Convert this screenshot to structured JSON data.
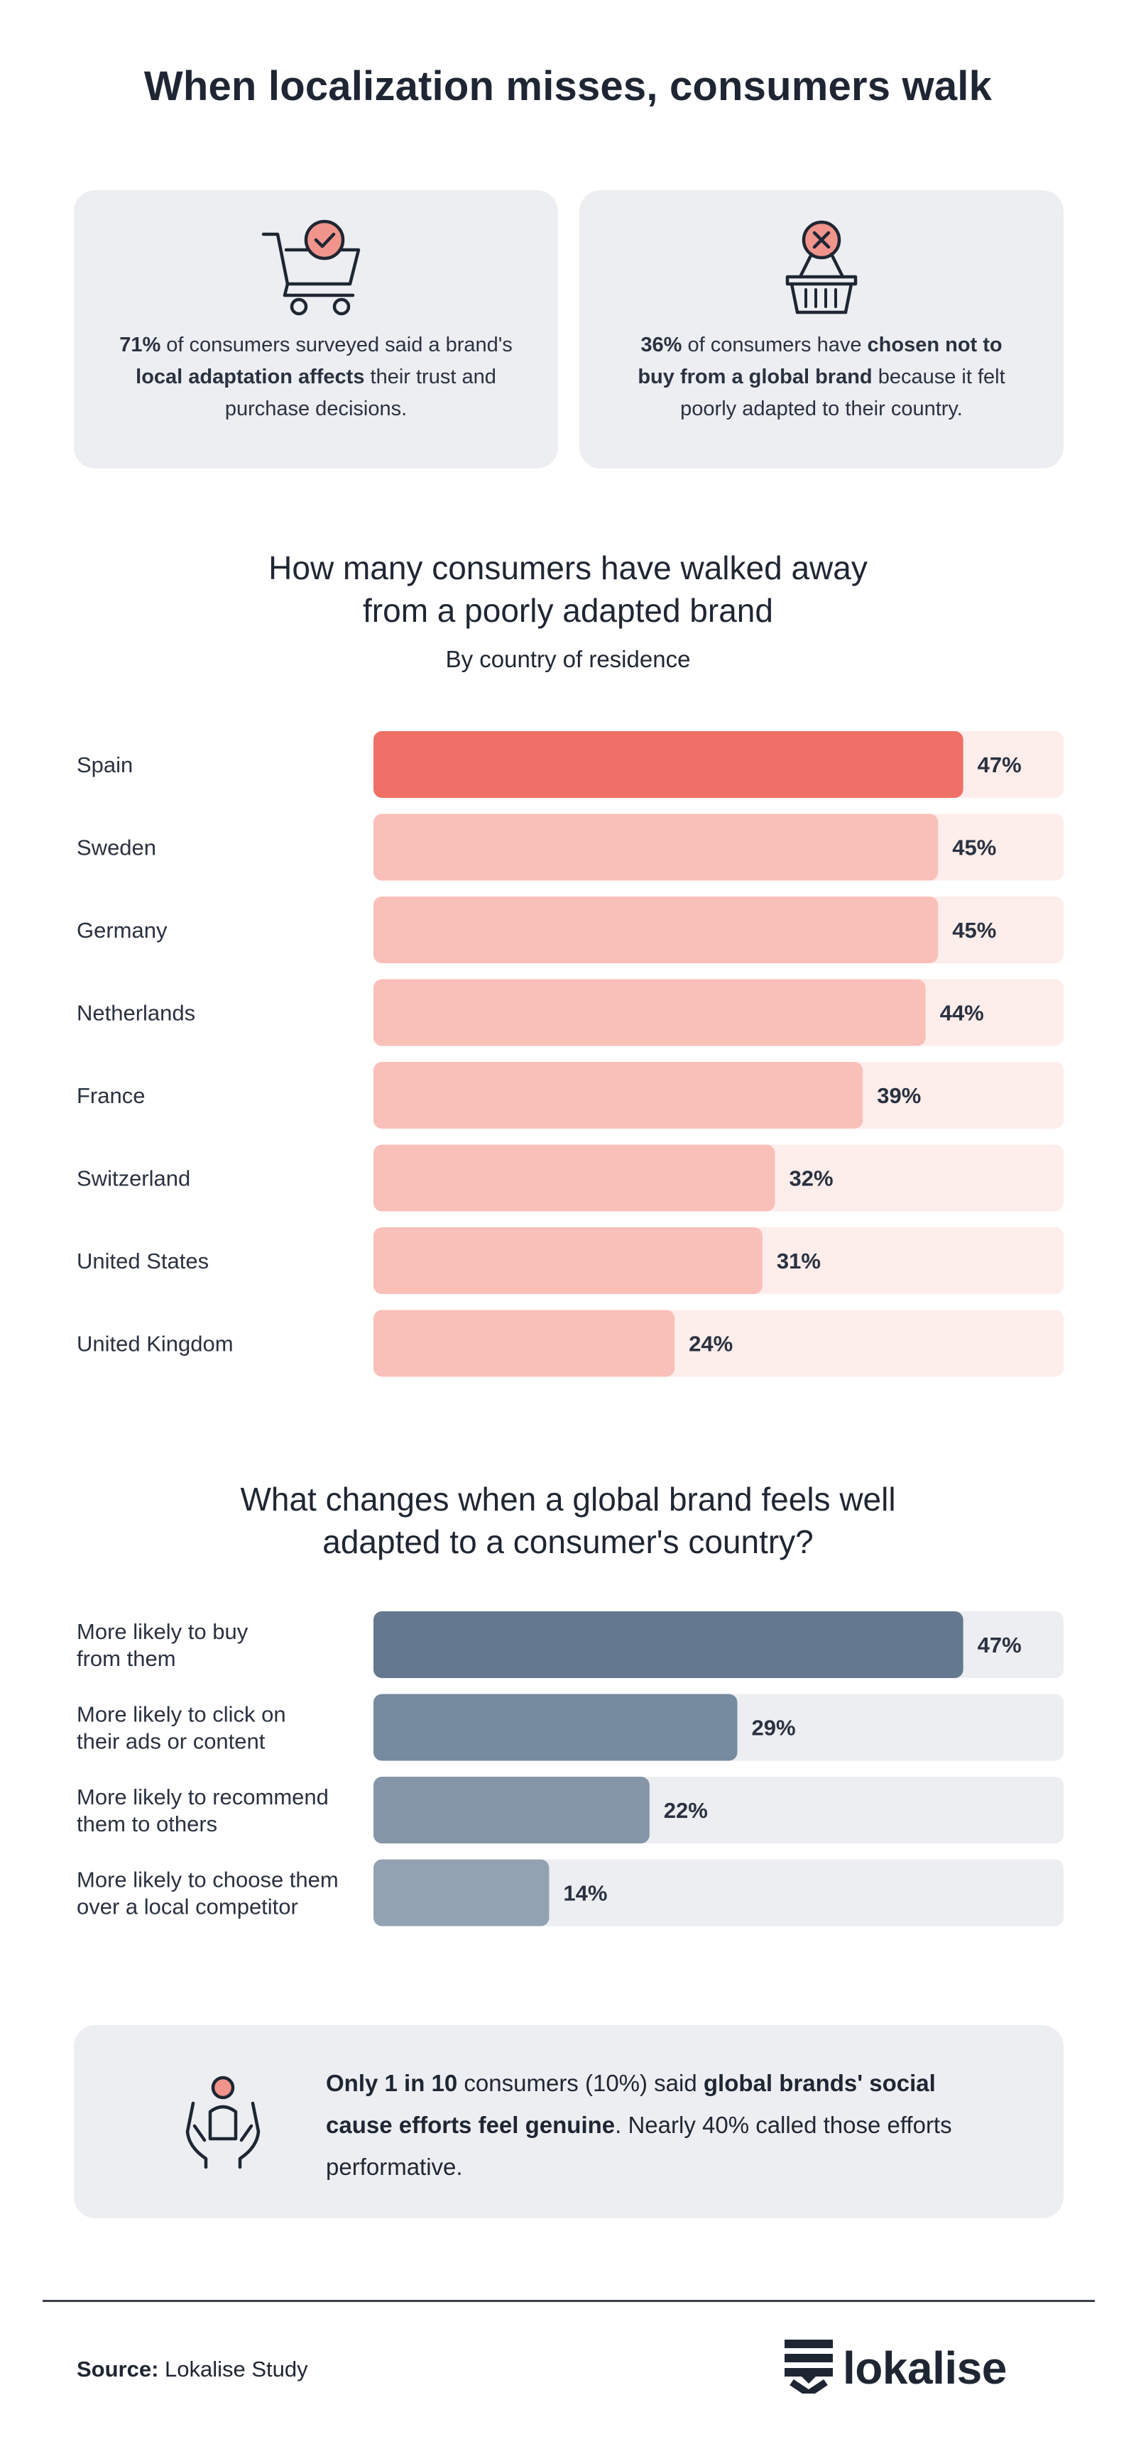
{
  "title": "When localization misses, consumers walk",
  "stat_cards": [
    {
      "icon": "shopping-cart-check-icon",
      "pre": "",
      "bold1": "71%",
      "mid": " of consumers surveyed said a brand's ",
      "bold2": "local adaptation affects",
      "post": " their trust and purchase decisions."
    },
    {
      "icon": "basket-x-icon",
      "pre": "",
      "bold1": "36%",
      "mid": " of consumers have ",
      "bold2": "chosen not to buy from a global brand",
      "post": " because it felt poorly adapted to their country."
    }
  ],
  "colors": {
    "highlight_bar": "#ee7066",
    "light_bar": "#f9c0b9",
    "light_track": "#fdedeb",
    "track_gray": "#eceef1",
    "slate_bars": [
      "#64788f",
      "#768aa0",
      "#8596a8",
      "#93a2b2"
    ]
  },
  "chart_data": [
    {
      "type": "bar",
      "title": "How many consumers have walked away from a poorly adapted brand",
      "title_lines": [
        "How many consumers have walked away",
        "from a poorly adapted brand"
      ],
      "subtitle": "By country of residence",
      "orientation": "horizontal",
      "categories": [
        "Spain",
        "Sweden",
        "Germany",
        "Netherlands",
        "France",
        "Switzerland",
        "United States",
        "United Kingdom"
      ],
      "values": [
        47,
        45,
        45,
        44,
        39,
        32,
        31,
        24
      ],
      "value_labels": [
        "47%",
        "45%",
        "45%",
        "44%",
        "39%",
        "32%",
        "31%",
        "24%"
      ],
      "highlight_index": 0,
      "xlim": [
        0,
        55
      ],
      "grid": false
    },
    {
      "type": "bar",
      "title": "What changes when a global brand feels well adapted to a consumer's country?",
      "title_lines": [
        "What changes when a global brand feels well",
        "adapted to a consumer's country?"
      ],
      "orientation": "horizontal",
      "categories": [
        "More likely to buy from them",
        "More likely to click on their ads or content",
        "More likely to recommend them to others",
        "More likely to choose them over a local competitor"
      ],
      "category_lines": [
        [
          "More likely to buy",
          "from them"
        ],
        [
          "More likely to click on",
          "their ads or content"
        ],
        [
          "More likely to recommend",
          "them to others"
        ],
        [
          "More likely to choose them",
          "over a local competitor"
        ]
      ],
      "values": [
        47,
        29,
        22,
        14
      ],
      "value_labels": [
        "47%",
        "29%",
        "22%",
        "14%"
      ],
      "xlim": [
        0,
        55
      ],
      "grid": false
    }
  ],
  "callout": {
    "icon": "person-hands-icon",
    "bold1": "Only 1 in 10",
    "mid": " consumers (10%) said ",
    "bold2": "global brands' social cause efforts feel genuine",
    "post": ". Nearly 40% called those efforts performative."
  },
  "source": {
    "label": "Source:",
    "text": " Lokalise Study"
  },
  "logo": {
    "text": "lokalise",
    "icon": "lokalise-logo-icon"
  }
}
